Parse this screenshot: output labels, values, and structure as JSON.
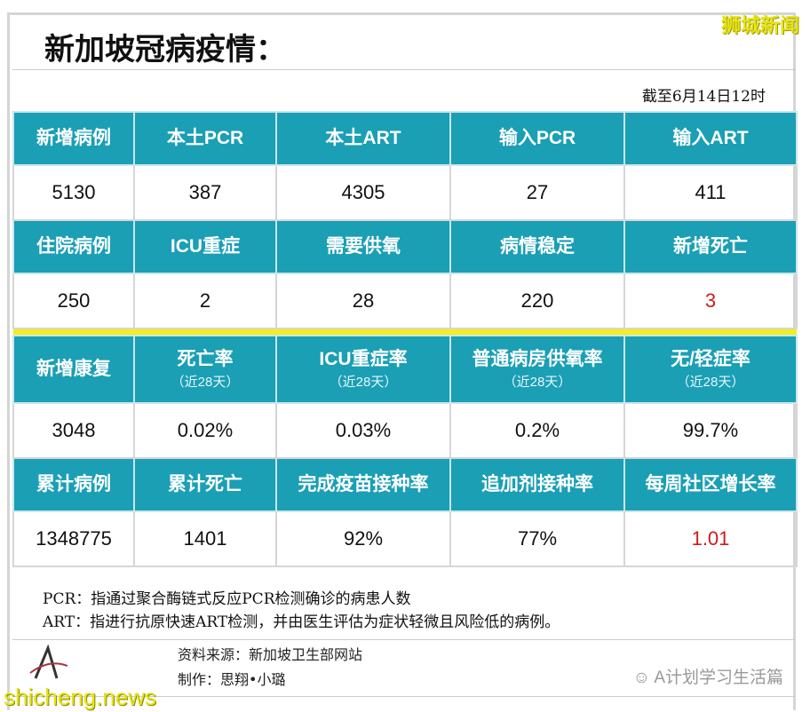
{
  "title": "新加坡冠病疫情：",
  "brand": "狮城新闻",
  "date": "截至6月14日12时",
  "rows": [
    {
      "type": "h",
      "cells": [
        {
          "t": "新增病例"
        },
        {
          "t": "本土PCR"
        },
        {
          "t": "本土ART"
        },
        {
          "t": "输入PCR"
        },
        {
          "t": "输入ART"
        }
      ]
    },
    {
      "type": "d",
      "cells": [
        {
          "t": "5130"
        },
        {
          "t": "387"
        },
        {
          "t": "4305"
        },
        {
          "t": "27"
        },
        {
          "t": "411"
        }
      ]
    },
    {
      "type": "h",
      "cells": [
        {
          "t": "住院病例"
        },
        {
          "t": "ICU重症"
        },
        {
          "t": "需要供氧"
        },
        {
          "t": "病情稳定"
        },
        {
          "t": "新增死亡"
        }
      ]
    },
    {
      "type": "d",
      "cells": [
        {
          "t": "250"
        },
        {
          "t": "2"
        },
        {
          "t": "28"
        },
        {
          "t": "220"
        },
        {
          "t": "3",
          "red": true
        }
      ]
    },
    {
      "type": "sep"
    },
    {
      "type": "h",
      "tall": true,
      "cells": [
        {
          "t": "新增康复"
        },
        {
          "t": "死亡率",
          "s": "（近28天）"
        },
        {
          "t": "ICU重症率",
          "s": "（近28天）"
        },
        {
          "t": "普通病房供氧率",
          "s": "（近28天）"
        },
        {
          "t": "无/轻症率",
          "s": "（近28天）"
        }
      ]
    },
    {
      "type": "d",
      "cells": [
        {
          "t": "3048"
        },
        {
          "t": "0.02%"
        },
        {
          "t": "0.03%"
        },
        {
          "t": "0.2%"
        },
        {
          "t": "99.7%"
        }
      ]
    },
    {
      "type": "h",
      "cells": [
        {
          "t": "累计病例"
        },
        {
          "t": "累计死亡"
        },
        {
          "t": "完成疫苗接种率"
        },
        {
          "t": "追加剂接种率"
        },
        {
          "t": "每周社区增长率"
        }
      ]
    },
    {
      "type": "d",
      "cells": [
        {
          "t": "1348775"
        },
        {
          "t": "1401"
        },
        {
          "t": "92%"
        },
        {
          "t": "77%"
        },
        {
          "t": "1.01",
          "red": true
        }
      ]
    }
  ],
  "notes": [
    "PCR：指通过聚合酶链式反应PCR检测确诊的病患人数",
    "ART：指进行抗原快速ART检测，并由医生评估为症状轻微且风险低的病例。"
  ],
  "source": "资料来源：新加坡卫生部网站",
  "author": "制作：思翔•小璐",
  "wechat": "A计划学习生活篇",
  "watermark": "shicheng.news",
  "colors": {
    "header": "#1a9fb5",
    "highlight": "#d01a1a",
    "separator": "#f4ee1c"
  }
}
